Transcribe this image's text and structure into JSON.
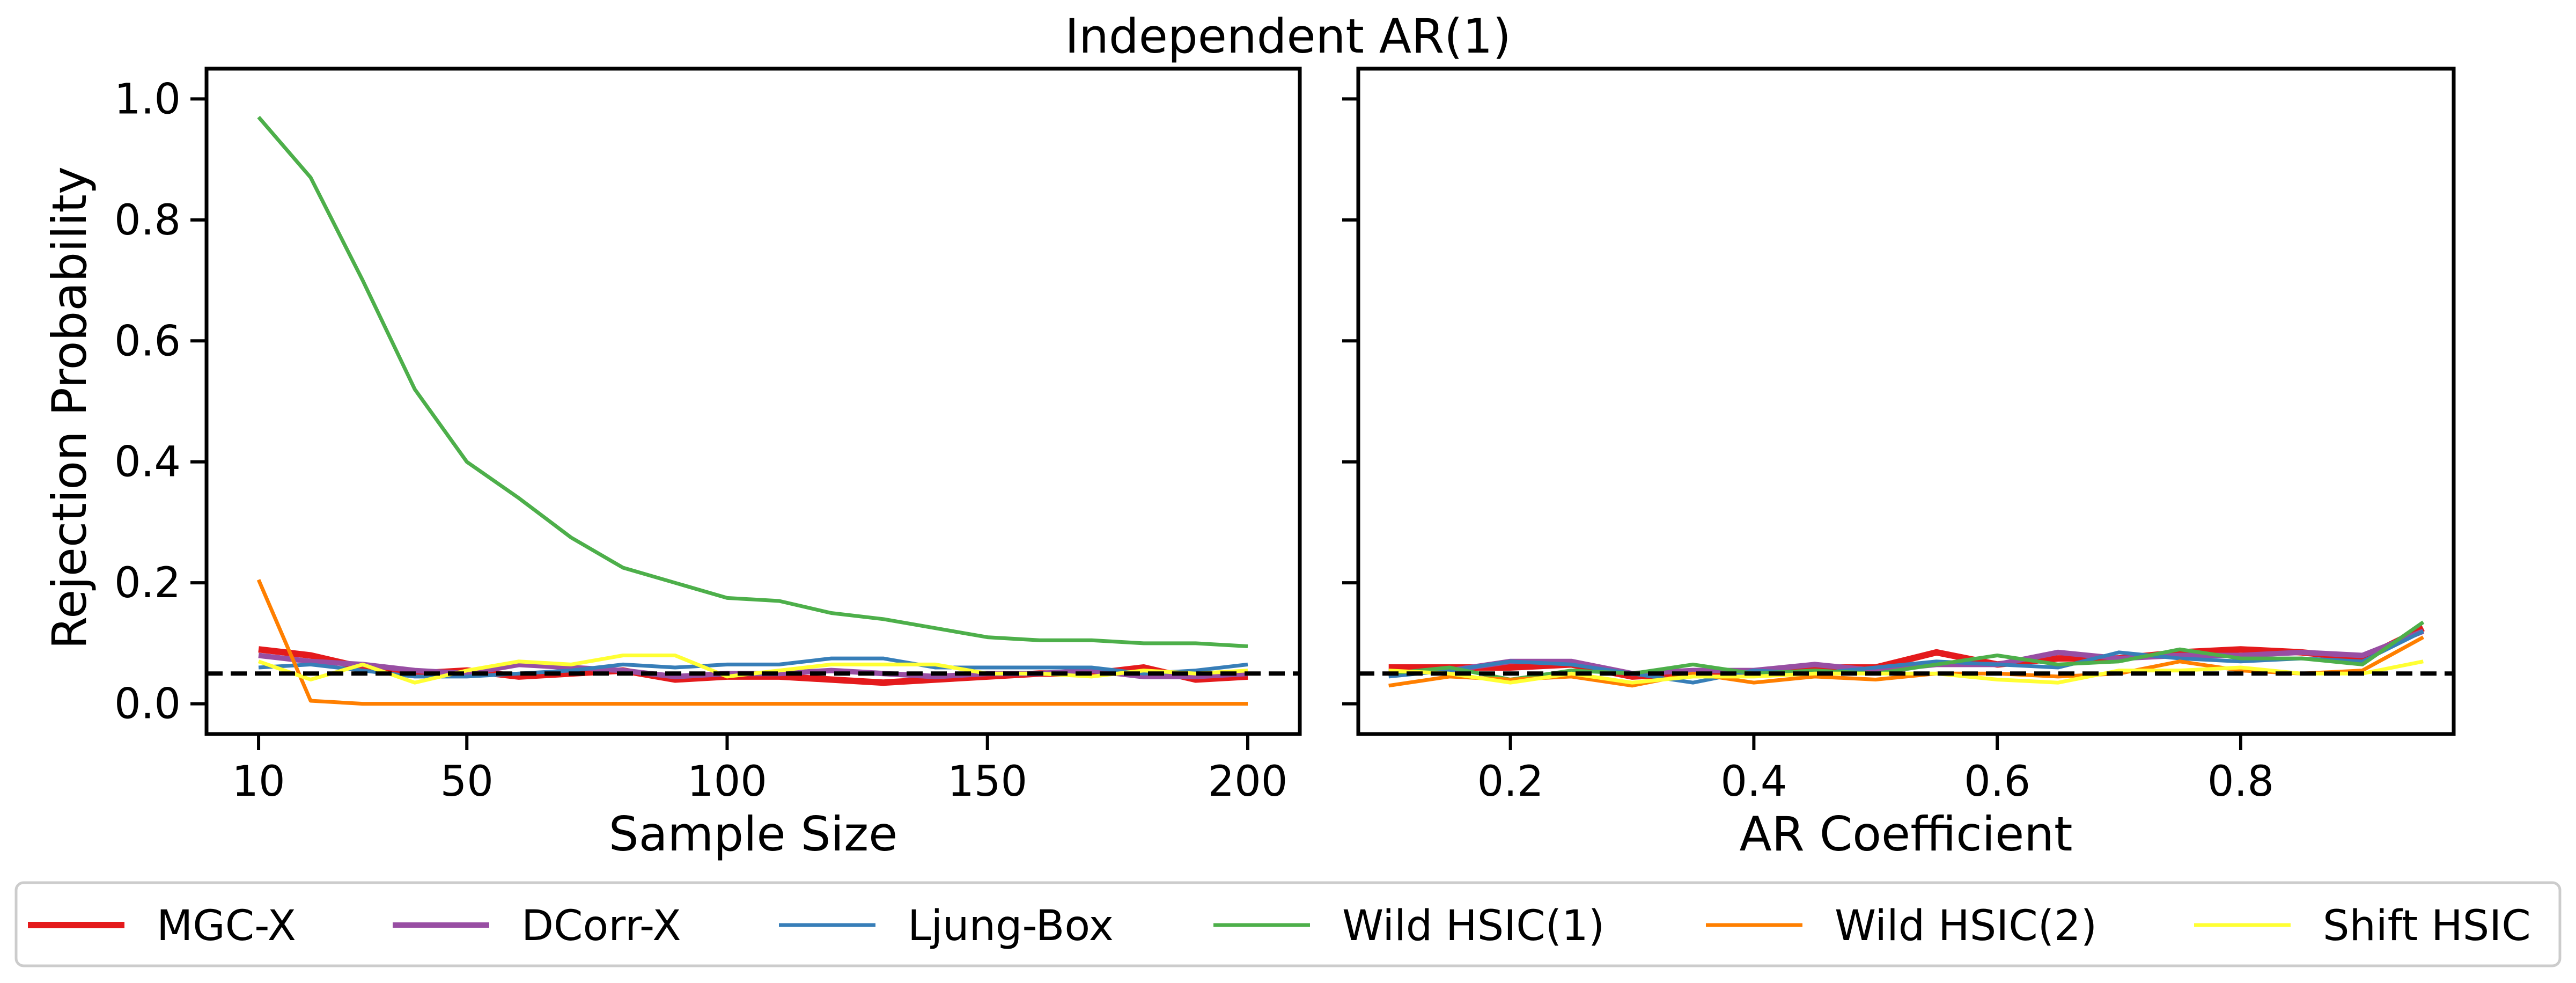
{
  "chart_data": {
    "type": "line",
    "title": "Independent AR(1)",
    "ylabel": "Rejection Probability",
    "ylim": [
      -0.05,
      1.05
    ],
    "yticks": [
      0.0,
      0.2,
      0.4,
      0.6,
      0.8,
      1.0
    ],
    "reference_line": {
      "y": 0.05,
      "style": "dashed",
      "color": "#000000"
    },
    "grid": false,
    "legend_position": "bottom",
    "series_styles": [
      {
        "name": "MGC-X",
        "color": "#e41a1c",
        "width": 12
      },
      {
        "name": "DCorr-X",
        "color": "#984ea3",
        "width": 10
      },
      {
        "name": "Ljung-Box",
        "color": "#377eb8",
        "width": 7
      },
      {
        "name": "Wild HSIC(1)",
        "color": "#4daf4a",
        "width": 7
      },
      {
        "name": "Wild HSIC(2)",
        "color": "#ff7f00",
        "width": 7
      },
      {
        "name": "Shift HSIC",
        "color": "#ffff33",
        "width": 7
      }
    ],
    "panels": [
      {
        "xlabel": "Sample Size",
        "xlim": [
          0,
          210
        ],
        "xticks": [
          10,
          50,
          100,
          150,
          200
        ],
        "x": [
          10,
          20,
          30,
          40,
          50,
          60,
          70,
          80,
          90,
          100,
          110,
          120,
          130,
          140,
          150,
          160,
          170,
          180,
          190,
          200
        ],
        "series": [
          {
            "name": "MGC-X",
            "values": [
              0.09,
              0.08,
              0.06,
              0.05,
              0.055,
              0.045,
              0.05,
              0.055,
              0.04,
              0.045,
              0.045,
              0.04,
              0.035,
              0.04,
              0.045,
              0.05,
              0.05,
              0.06,
              0.04,
              0.045
            ]
          },
          {
            "name": "DCorr-X",
            "values": [
              0.08,
              0.07,
              0.065,
              0.055,
              0.05,
              0.065,
              0.06,
              0.055,
              0.045,
              0.05,
              0.05,
              0.055,
              0.05,
              0.045,
              0.05,
              0.05,
              0.055,
              0.045,
              0.045,
              0.05
            ]
          },
          {
            "name": "Ljung-Box",
            "values": [
              0.06,
              0.065,
              0.055,
              0.045,
              0.045,
              0.05,
              0.055,
              0.065,
              0.06,
              0.065,
              0.065,
              0.075,
              0.075,
              0.06,
              0.06,
              0.06,
              0.06,
              0.05,
              0.055,
              0.065
            ]
          },
          {
            "name": "Wild HSIC(1)",
            "values": [
              0.97,
              0.87,
              0.7,
              0.52,
              0.4,
              0.34,
              0.275,
              0.225,
              0.2,
              0.175,
              0.17,
              0.15,
              0.14,
              0.125,
              0.11,
              0.105,
              0.105,
              0.1,
              0.1,
              0.095
            ]
          },
          {
            "name": "Wild HSIC(2)",
            "values": [
              0.205,
              0.005,
              0.0,
              0.0,
              0.0,
              0.0,
              0.0,
              0.0,
              0.0,
              0.0,
              0.0,
              0.0,
              0.0,
              0.0,
              0.0,
              0.0,
              0.0,
              0.0,
              0.0,
              0.0
            ]
          },
          {
            "name": "Shift HSIC",
            "values": [
              0.07,
              0.04,
              0.065,
              0.035,
              0.055,
              0.07,
              0.065,
              0.08,
              0.08,
              0.045,
              0.055,
              0.065,
              0.065,
              0.065,
              0.05,
              0.05,
              0.045,
              0.055,
              0.05,
              0.055
            ]
          }
        ]
      },
      {
        "xlabel": "AR Coefficient",
        "xlim": [
          0.075,
          0.975
        ],
        "xticks": [
          0.2,
          0.4,
          0.6,
          0.8
        ],
        "x": [
          0.1,
          0.15,
          0.2,
          0.25,
          0.3,
          0.35,
          0.4,
          0.45,
          0.5,
          0.55,
          0.6,
          0.65,
          0.7,
          0.75,
          0.8,
          0.85,
          0.9,
          0.95
        ],
        "series": [
          {
            "name": "MGC-X",
            "values": [
              0.06,
              0.06,
              0.06,
              0.065,
              0.045,
              0.05,
              0.05,
              0.06,
              0.06,
              0.085,
              0.065,
              0.075,
              0.075,
              0.085,
              0.09,
              0.085,
              0.075,
              0.125
            ]
          },
          {
            "name": "DCorr-X",
            "values": [
              0.05,
              0.055,
              0.07,
              0.07,
              0.05,
              0.055,
              0.055,
              0.065,
              0.055,
              0.065,
              0.065,
              0.085,
              0.075,
              0.08,
              0.08,
              0.085,
              0.08,
              0.12
            ]
          },
          {
            "name": "Ljung-Box",
            "values": [
              0.045,
              0.055,
              0.07,
              0.065,
              0.05,
              0.035,
              0.055,
              0.05,
              0.06,
              0.07,
              0.065,
              0.06,
              0.085,
              0.075,
              0.07,
              0.075,
              0.07,
              0.12
            ]
          },
          {
            "name": "Wild HSIC(1)",
            "values": [
              0.05,
              0.06,
              0.04,
              0.055,
              0.05,
              0.065,
              0.05,
              0.055,
              0.05,
              0.065,
              0.08,
              0.065,
              0.07,
              0.09,
              0.075,
              0.075,
              0.065,
              0.135
            ]
          },
          {
            "name": "Wild HSIC(2)",
            "values": [
              0.03,
              0.045,
              0.04,
              0.045,
              0.03,
              0.05,
              0.035,
              0.045,
              0.04,
              0.05,
              0.05,
              0.045,
              0.05,
              0.07,
              0.055,
              0.05,
              0.055,
              0.11
            ]
          },
          {
            "name": "Shift HSIC",
            "values": [
              0.055,
              0.05,
              0.035,
              0.05,
              0.035,
              0.045,
              0.045,
              0.05,
              0.05,
              0.05,
              0.04,
              0.035,
              0.055,
              0.055,
              0.06,
              0.05,
              0.05,
              0.07
            ]
          }
        ]
      }
    ]
  }
}
